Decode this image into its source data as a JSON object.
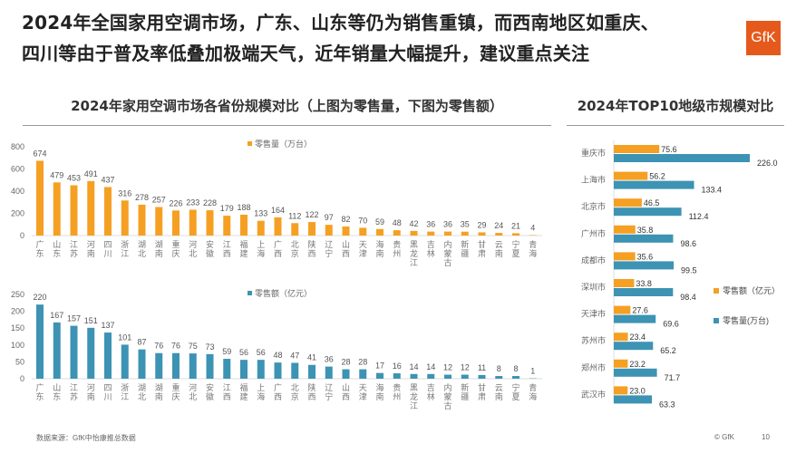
{
  "header": {
    "title_line1": "2024年全国家用空调市场，广东、山东等仍为销售重镇，而西南地区如重庆、",
    "title_line2": "四川等由于普及率低叠加极端天气，近年销量大幅提升，建议重点关注",
    "logo": "GfK"
  },
  "left_section": {
    "title": "2024年家用空调市场各省份规模对比（上图为零售量，下图为零售额）"
  },
  "right_section": {
    "title": "2024年TOP10地级市规模对比"
  },
  "footer": {
    "source": "数据来源：GfK中怡康推总数据",
    "copyright": "© GfK",
    "page": "10"
  },
  "colors": {
    "orange": "#f5a023",
    "blue": "#3d93b3"
  },
  "chart_data": [
    {
      "type": "bar",
      "legend": "零售量（万台）",
      "color": "#f5a023",
      "ylim": [
        0,
        800
      ],
      "yticks": [
        0,
        200,
        400,
        600,
        800
      ],
      "categories": [
        "广东",
        "山东",
        "江苏",
        "河南",
        "四川",
        "浙江",
        "湖北",
        "湖南",
        "重庆",
        "河北",
        "安徽",
        "江西",
        "福建",
        "上海",
        "广西",
        "北京",
        "陕西",
        "辽宁",
        "山西",
        "天津",
        "海南",
        "贵州",
        "黑龙江",
        "吉林",
        "内蒙古",
        "新疆",
        "甘肃",
        "云南",
        "宁夏",
        "青海"
      ],
      "values": [
        674,
        479,
        453,
        491,
        437,
        316,
        278,
        257,
        226,
        233,
        228,
        179,
        188,
        133,
        164,
        112,
        122,
        97,
        82,
        70,
        59,
        48,
        42,
        36,
        36,
        35,
        29,
        24,
        21,
        4
      ]
    },
    {
      "type": "bar",
      "legend": "零售额（亿元）",
      "color": "#3d93b3",
      "ylim": [
        0,
        250
      ],
      "yticks": [
        0,
        50,
        100,
        150,
        200,
        250
      ],
      "categories": [
        "广东",
        "山东",
        "江苏",
        "河南",
        "四川",
        "浙江",
        "湖北",
        "湖南",
        "重庆",
        "河北",
        "安徽",
        "江西",
        "福建",
        "上海",
        "广西",
        "北京",
        "陕西",
        "辽宁",
        "山西",
        "天津",
        "海南",
        "贵州",
        "黑龙江",
        "吉林",
        "内蒙古",
        "新疆",
        "甘肃",
        "云南",
        "宁夏",
        "青海"
      ],
      "values": [
        220,
        167,
        157,
        151,
        137,
        101,
        87,
        76,
        76,
        75,
        73,
        59,
        56,
        56,
        48,
        47,
        41,
        36,
        28,
        28,
        17,
        16,
        14,
        14,
        12,
        12,
        11,
        8,
        8,
        1
      ]
    },
    {
      "type": "bar",
      "orientation": "horizontal",
      "categories": [
        "重庆市",
        "上海市",
        "北京市",
        "广州市",
        "成都市",
        "深圳市",
        "天津市",
        "苏州市",
        "郑州市",
        "武汉市"
      ],
      "series": [
        {
          "name": "零售额（亿元）",
          "color": "#f5a023",
          "values": [
            75.6,
            56.2,
            46.5,
            35.8,
            35.6,
            33.8,
            27.6,
            23.4,
            23.2,
            23.0
          ]
        },
        {
          "name": "零售量(万台)",
          "color": "#3d93b3",
          "values": [
            226.0,
            133.4,
            112.4,
            98.6,
            99.5,
            98.4,
            69.6,
            65.2,
            71.7,
            63.3
          ]
        }
      ]
    }
  ]
}
